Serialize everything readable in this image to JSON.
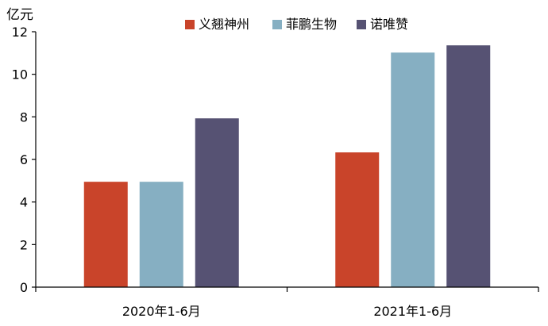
{
  "chart_data": {
    "type": "bar",
    "ylabel": "亿元",
    "categories": [
      "2020年1-6月",
      "2021年1-6月"
    ],
    "ylim": [
      0,
      12
    ],
    "yticks": [
      0,
      2,
      4,
      6,
      8,
      10,
      12
    ],
    "grid": false,
    "legend_position": "top",
    "series": [
      {
        "name": "义翘神州",
        "color": "#C9442A",
        "values": [
          4.95,
          6.33
        ]
      },
      {
        "name": "菲鹏生物",
        "color": "#86AFC2",
        "values": [
          4.95,
          11.02
        ]
      },
      {
        "name": "诺唯赞",
        "color": "#565273",
        "values": [
          7.93,
          11.36
        ]
      }
    ]
  }
}
